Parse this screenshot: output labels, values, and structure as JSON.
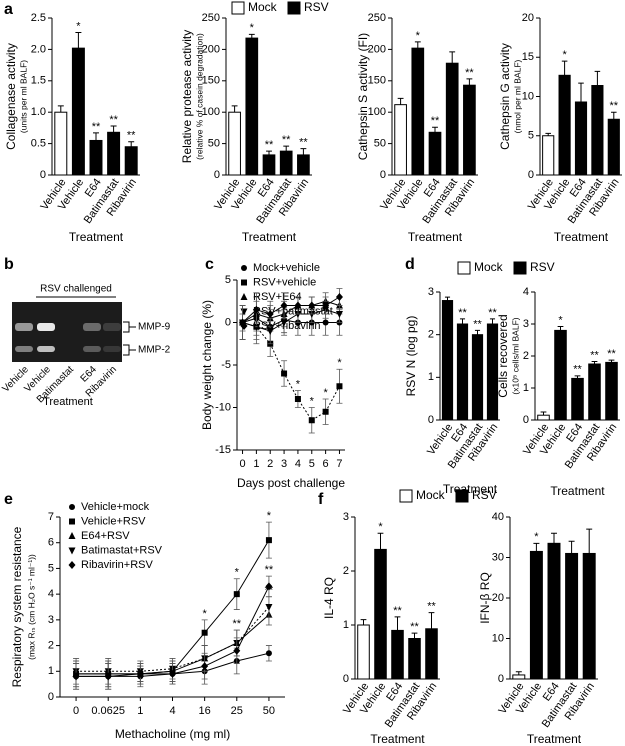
{
  "chart_data": [
    {
      "type": "bar",
      "panel": "a",
      "ylabel": "Collagenase activity",
      "ylabel_sub": "(units per ml BALF)",
      "xlabel": "Treatment",
      "categories": [
        "Vehicle",
        "Vehicle",
        "E64",
        "Batimastat",
        "Ribavirin"
      ],
      "values": [
        1.0,
        2.02,
        0.55,
        0.68,
        0.45
      ],
      "errors": [
        0.1,
        0.25,
        0.12,
        0.1,
        0.08
      ],
      "bar_colors": [
        "#ffffff",
        "#000000",
        "#000000",
        "#000000",
        "#000000"
      ],
      "annotations": [
        null,
        "*",
        "**",
        "**",
        "**"
      ],
      "ylim": [
        0,
        2.5
      ],
      "yticks": [
        0,
        0.5,
        {
          "value": 1,
          "label": "1.0"
        },
        1.5,
        {
          "value": 2,
          "label": "2.0"
        },
        2.5
      ]
    },
    {
      "type": "bar",
      "ylabel": "Relative protease activity",
      "ylabel_sub": "(relative % of casein degradation)",
      "xlabel": "Treatment",
      "categories": [
        "Vehicle",
        "Vehicle",
        "E64",
        "Batimastat",
        "Ribavirin"
      ],
      "values": [
        100,
        218,
        32,
        38,
        32
      ],
      "errors": [
        10,
        6,
        6,
        8,
        10
      ],
      "bar_colors": [
        "#ffffff",
        "#000000",
        "#000000",
        "#000000",
        "#000000"
      ],
      "annotations": [
        null,
        "*",
        "**",
        "**",
        "**"
      ],
      "legend": [
        {
          "name": "Mock",
          "color": "#ffffff"
        },
        {
          "name": "RSV",
          "color": "#000000"
        }
      ],
      "ylim": [
        0,
        250
      ],
      "yticks": [
        0,
        50,
        100,
        150,
        200,
        250
      ]
    },
    {
      "type": "bar",
      "ylabel": "Cathepsin S activity (FI)",
      "xlabel": "Treatment",
      "categories": [
        "Vehicle",
        "Vehicle",
        "E64",
        "Batimastat",
        "Ribavirin"
      ],
      "values": [
        112,
        202,
        68,
        178,
        143
      ],
      "errors": [
        10,
        10,
        8,
        18,
        10
      ],
      "bar_colors": [
        "#ffffff",
        "#000000",
        "#000000",
        "#000000",
        "#000000"
      ],
      "annotations": [
        null,
        "*",
        "**",
        null,
        "**"
      ],
      "ylim": [
        0,
        250
      ],
      "yticks": [
        0,
        50,
        100,
        150,
        200,
        250
      ]
    },
    {
      "type": "bar",
      "ylabel": "Cathepsin G activity",
      "ylabel_sub": "(nmol per ml BALF)",
      "xlabel": "Treatment",
      "categories": [
        "Vehicle",
        "Vehicle",
        "E64",
        "Batimastat",
        "Ribavirin"
      ],
      "values": [
        5,
        12.7,
        9.3,
        11.4,
        7.1
      ],
      "errors": [
        0.3,
        1.8,
        2.4,
        1.8,
        0.9
      ],
      "bar_colors": [
        "#ffffff",
        "#000000",
        "#000000",
        "#000000",
        "#000000"
      ],
      "annotations": [
        null,
        "*",
        null,
        null,
        "**"
      ],
      "ylim": [
        0,
        20
      ],
      "yticks": [
        0,
        5,
        10,
        15,
        20
      ]
    },
    {
      "type": "gel",
      "panel": "b",
      "bracket_label": "RSV challenged",
      "bands": [
        "MMP-9",
        "MMP-2"
      ],
      "lanes": [
        "Vehicle",
        "Vehicle",
        "Batimastat",
        "E64",
        "Ribavirin"
      ],
      "xlabel": "Treatment"
    },
    {
      "type": "line",
      "panel": "c",
      "ylabel": "Body weight change (%)",
      "xlabel": "Days post challenge",
      "x": [
        0,
        1,
        2,
        3,
        4,
        5,
        6,
        7
      ],
      "xlim": [
        -0.4,
        7.4
      ],
      "xticks": [
        0,
        1,
        2,
        3,
        4,
        5,
        6,
        7
      ],
      "ylim": [
        -15,
        5
      ],
      "yticks": [
        -15,
        -10,
        -5,
        0,
        5
      ],
      "series": [
        {
          "name": "Mock+vehicle",
          "color": "#000000",
          "marker": "circle",
          "line_style": "solid",
          "values": [
            0,
            0.5,
            -0.5,
            0.3,
            0,
            0,
            0,
            0
          ],
          "errors": [
            2,
            2,
            2,
            1.5,
            1.5,
            1.5,
            1.5,
            1.5
          ],
          "annotations": [
            null,
            null,
            null,
            null,
            null,
            null,
            null,
            null
          ]
        },
        {
          "name": "RSV+vehicle",
          "color": "#000000",
          "marker": "square",
          "line_style": "dotted",
          "values": [
            0,
            -0.5,
            -2.5,
            -6,
            -9,
            -11.5,
            -10.5,
            -7.5
          ],
          "errors": [
            1,
            1.5,
            1.5,
            1.5,
            1,
            1.5,
            1.5,
            2
          ],
          "annotations": [
            null,
            null,
            null,
            null,
            "*",
            "*",
            "*",
            "*"
          ]
        },
        {
          "name": "RSV+E64",
          "color": "#000000",
          "marker": "triangle",
          "line_style": "solid",
          "values": [
            0,
            1,
            0.5,
            1,
            2,
            2,
            2.5,
            2
          ],
          "errors": [
            2,
            2,
            1.5,
            1.5,
            1,
            1,
            1,
            1
          ],
          "annotations": [
            null,
            null,
            null,
            null,
            null,
            null,
            null,
            null
          ]
        },
        {
          "name": "RSV+batimastat",
          "color": "#000000",
          "marker": "triangle-down",
          "line_style": "solid",
          "values": [
            0,
            -0.5,
            -1,
            0,
            1,
            1,
            1.5,
            1
          ],
          "errors": [
            2,
            2,
            1.5,
            1.5,
            1,
            1,
            1,
            1
          ],
          "annotations": [
            null,
            null,
            null,
            null,
            null,
            null,
            null,
            null
          ]
        },
        {
          "name": "RSV+ribavirin",
          "color": "#000000",
          "marker": "diamond",
          "line_style": "solid",
          "values": [
            0,
            1.5,
            1,
            2,
            2,
            2,
            2,
            3
          ],
          "errors": [
            2,
            2,
            1.5,
            1.5,
            1,
            1,
            1,
            1
          ],
          "annotations": [
            null,
            null,
            null,
            null,
            null,
            null,
            null,
            null
          ]
        }
      ]
    },
    {
      "type": "bar",
      "panel": "d",
      "ylabel": "RSV N (log pg)",
      "xlabel": "Treatment",
      "categories": [
        "Vehicle",
        "E64",
        "Batimastat",
        "Ribavirin"
      ],
      "values": [
        2.8,
        2.25,
        2.0,
        2.25
      ],
      "errors": [
        0.08,
        0.12,
        0.1,
        0.12
      ],
      "bar_colors": [
        "#000000",
        "#000000",
        "#000000",
        "#000000"
      ],
      "annotations": [
        null,
        "**",
        "**",
        "**"
      ],
      "legend": [
        {
          "name": "Mock",
          "color": "#ffffff"
        },
        {
          "name": "RSV",
          "color": "#000000"
        }
      ],
      "ylim": [
        0,
        3
      ],
      "yticks": [
        0,
        1,
        2,
        3
      ]
    },
    {
      "type": "bar",
      "ylabel": "Cells recovered",
      "ylabel_sub": "(x10⁵ cells/ml BALF)",
      "xlabel": "Treatment",
      "categories": [
        "Vehicle",
        "Vehicle",
        "E64",
        "Batimastat",
        "Ribavirin"
      ],
      "values": [
        0.15,
        2.8,
        1.3,
        1.75,
        1.8
      ],
      "errors": [
        0.1,
        0.12,
        0.08,
        0.08,
        0.07
      ],
      "bar_colors": [
        "#ffffff",
        "#000000",
        "#000000",
        "#000000",
        "#000000"
      ],
      "annotations": [
        null,
        "*",
        "**",
        "**",
        "**"
      ],
      "ylim": [
        0,
        4
      ],
      "yticks": [
        0,
        1,
        2,
        3,
        4
      ]
    },
    {
      "type": "line",
      "panel": "e",
      "ylabel": "Respiratory system resistance",
      "ylabel_sub": "(max Rᵣₛ (cm H₂O s⁻¹ ml⁻¹))",
      "xlabel": "Methacholine (mg ml)",
      "categories": [
        "0",
        "0.0625",
        "1",
        "4",
        "16",
        "25",
        "50"
      ],
      "ylim": [
        0,
        7
      ],
      "yticks": [
        0,
        1,
        2,
        3,
        4,
        5,
        6,
        7
      ],
      "series": [
        {
          "name": "Vehicle+mock",
          "color": "#000000",
          "marker": "circle",
          "line_style": "solid",
          "values": [
            0.8,
            0.8,
            0.8,
            0.9,
            1.0,
            1.4,
            1.7
          ],
          "errors": [
            0.5,
            0.5,
            0.4,
            0.4,
            0.5,
            0.5,
            0.3
          ],
          "annotations": [
            null,
            null,
            null,
            null,
            null,
            null,
            null
          ]
        },
        {
          "name": "Vehicle+RSV",
          "color": "#000000",
          "marker": "square",
          "line_style": "solid",
          "values": [
            0.9,
            0.9,
            0.9,
            1.0,
            2.5,
            4.0,
            6.1
          ],
          "errors": [
            0.5,
            0.5,
            0.3,
            0.4,
            0.5,
            0.6,
            0.7
          ],
          "annotations": [
            null,
            null,
            null,
            null,
            "*",
            "*",
            "*"
          ]
        },
        {
          "name": "E64+RSV",
          "color": "#000000",
          "marker": "triangle",
          "line_style": "solid",
          "values": [
            0.9,
            0.9,
            0.9,
            1.0,
            1.5,
            2.1,
            3.2
          ],
          "errors": [
            0.5,
            0.5,
            0.4,
            0.4,
            0.5,
            0.5,
            0.4
          ],
          "annotations": [
            null,
            null,
            null,
            null,
            null,
            null,
            null
          ]
        },
        {
          "name": "Batimastat+RSV",
          "color": "#000000",
          "marker": "triangle-down",
          "line_style": "dotted",
          "values": [
            1.0,
            1.0,
            1.0,
            1.1,
            1.5,
            2.1,
            3.5
          ],
          "errors": [
            0.5,
            0.5,
            0.4,
            0.4,
            0.5,
            0.5,
            0.4
          ],
          "annotations": [
            null,
            null,
            null,
            null,
            null,
            "**",
            "**"
          ]
        },
        {
          "name": "Ribavirin+RSV",
          "color": "#000000",
          "marker": "diamond",
          "line_style": "solid",
          "values": [
            0.8,
            0.8,
            0.9,
            0.9,
            1.2,
            1.8,
            4.3
          ],
          "errors": [
            0.5,
            0.5,
            0.4,
            0.4,
            0.5,
            0.5,
            0.4
          ],
          "annotations": [
            null,
            null,
            null,
            null,
            null,
            null,
            "**"
          ]
        }
      ]
    },
    {
      "type": "bar",
      "panel": "f",
      "ylabel": "IL-4 RQ",
      "xlabel": "Treatment",
      "categories": [
        "Vehicle",
        "Vehicle",
        "E64",
        "Batimastat",
        "Ribavirin"
      ],
      "values": [
        1.0,
        2.4,
        0.9,
        0.75,
        0.93
      ],
      "errors": [
        0.1,
        0.3,
        0.25,
        0.1,
        0.3
      ],
      "bar_colors": [
        "#ffffff",
        "#000000",
        "#000000",
        "#000000",
        "#000000"
      ],
      "annotations": [
        null,
        "*",
        "**",
        "**",
        "**"
      ],
      "legend": [
        {
          "name": "Mock",
          "color": "#ffffff"
        },
        {
          "name": "RSV",
          "color": "#000000"
        }
      ],
      "ylim": [
        0,
        3
      ],
      "yticks": [
        0,
        1,
        2,
        3
      ]
    },
    {
      "type": "bar",
      "ylabel": "IFN-β RQ",
      "xlabel": "Treatment",
      "categories": [
        "Vehicle",
        "Vehicle",
        "E64",
        "Batimastat",
        "Ribavirin"
      ],
      "values": [
        1,
        31.5,
        33.5,
        31,
        31
      ],
      "errors": [
        0.8,
        2,
        2.5,
        3,
        6
      ],
      "bar_colors": [
        "#ffffff",
        "#000000",
        "#000000",
        "#000000",
        "#000000"
      ],
      "annotations": [
        null,
        "*",
        null,
        null,
        null
      ],
      "ylim": [
        0,
        40
      ],
      "yticks": [
        0,
        10,
        20,
        30,
        40
      ]
    }
  ]
}
